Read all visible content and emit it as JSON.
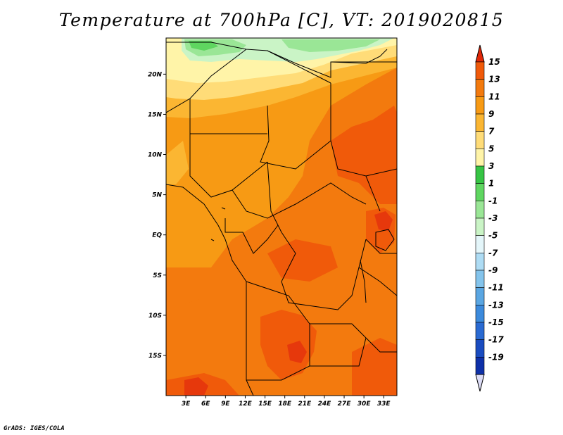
{
  "title": "Temperature at 700hPa [C], VT: 2019020815",
  "credit": "GrADS: IGES/COLA",
  "map": {
    "lat_range": [
      -20,
      24.5
    ],
    "lon_range": [
      0,
      35
    ],
    "lat_ticks": [
      {
        "value": 20,
        "label": "20N"
      },
      {
        "value": 15,
        "label": "15N"
      },
      {
        "value": 10,
        "label": "10N"
      },
      {
        "value": 5,
        "label": "5N"
      },
      {
        "value": 0,
        "label": "EQ"
      },
      {
        "value": -5,
        "label": "5S"
      },
      {
        "value": -10,
        "label": "10S"
      },
      {
        "value": -15,
        "label": "15S"
      }
    ],
    "lon_ticks": [
      {
        "value": 3,
        "label": "3E"
      },
      {
        "value": 6,
        "label": "6E"
      },
      {
        "value": 9,
        "label": "9E"
      },
      {
        "value": 12,
        "label": "12E"
      },
      {
        "value": 15,
        "label": "15E"
      },
      {
        "value": 18,
        "label": "18E"
      },
      {
        "value": 21,
        "label": "21E"
      },
      {
        "value": 24,
        "label": "24E"
      },
      {
        "value": 27,
        "label": "27E"
      },
      {
        "value": 30,
        "label": "30E"
      },
      {
        "value": 33,
        "label": "33E"
      }
    ]
  },
  "colorbar": {
    "levels": [
      "15",
      "13",
      "11",
      "9",
      "7",
      "5",
      "3",
      "1",
      "-1",
      "-3",
      "-5",
      "-7",
      "-9",
      "-11",
      "-13",
      "-15",
      "-17",
      "-19"
    ],
    "colors": [
      "#e6380c",
      "#f05a0a",
      "#f37a0e",
      "#f79a14",
      "#fbb632",
      "#ffdc78",
      "#fff4a8",
      "#36c444",
      "#5fd660",
      "#9ae696",
      "#caf4c6",
      "#e4f6fa",
      "#aedcf4",
      "#84c4ec",
      "#5aa6e2",
      "#3c8adc",
      "#2a6ad2",
      "#1a4cc0",
      "#0e30a8",
      "#081878"
    ],
    "top_arrow_color": "#e02808",
    "bottom_arrow_color": "#dcdcf6"
  },
  "fields": {
    "temperature_colors": {
      "green_dark": "#5fd660",
      "green_mid": "#9ae696",
      "green_light": "#caf4c6",
      "pale_yellow": "#fff4a8",
      "yellow": "#ffdc78",
      "light_orange": "#fbb632",
      "orange": "#f79a14",
      "dark_orange": "#f37a0e",
      "red_orange": "#f05a0a",
      "red": "#e6380c"
    }
  }
}
